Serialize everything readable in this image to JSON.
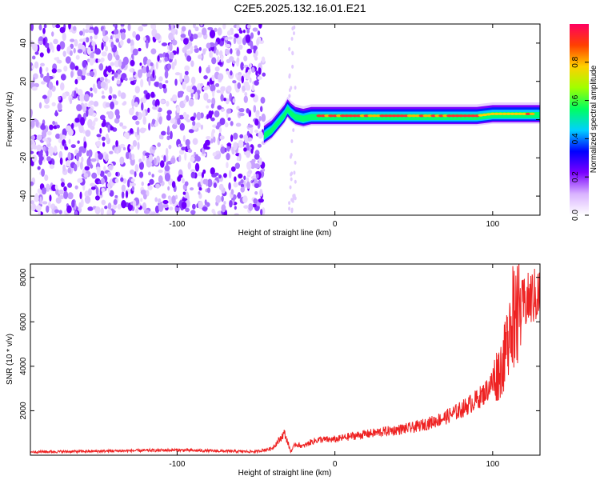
{
  "title": "C2E5.2025.132.16.01.E21",
  "chart_data": [
    {
      "type": "heatmap",
      "xlabel": "Height of straight line (km)",
      "ylabel": "Frequency (Hz)",
      "xlim": [
        -193,
        130
      ],
      "ylim": [
        -50,
        50
      ],
      "xticks": [
        -100,
        0,
        100
      ],
      "yticks": [
        -40,
        -20,
        0,
        20,
        40
      ],
      "colorbar": {
        "label": "Normalized spectral amplitude",
        "range": [
          0.0,
          1.0
        ],
        "ticks": [
          "0.0",
          "0.2",
          "0.4",
          "0.6",
          "0.8"
        ],
        "colors": [
          "#ffffff",
          "#d9b3ff",
          "#7a00ff",
          "#0000ff",
          "#00d0ff",
          "#00ff60",
          "#a0ff00",
          "#ffd000",
          "#ff4000",
          "#ff0060"
        ]
      },
      "noise_region": {
        "x": [
          -193,
          -45
        ],
        "y": [
          -50,
          50
        ]
      },
      "ridge": {
        "x": [
          -45,
          -40,
          -35,
          -32,
          -30,
          -28,
          -25,
          -20,
          -15,
          -10,
          -5,
          0,
          10,
          30,
          60,
          90,
          100,
          110,
          120,
          130
        ],
        "y": [
          -9,
          -6,
          -1,
          2,
          5,
          3,
          1,
          0,
          1,
          1,
          1,
          1,
          1,
          1,
          1,
          1,
          2,
          2,
          2,
          2
        ]
      }
    },
    {
      "type": "line",
      "xlabel": "Height of straight line (km)",
      "ylabel": "SNR (10 * v/v)",
      "xlim": [
        -193,
        130
      ],
      "ylim": [
        0,
        8600
      ],
      "xticks": [
        -100,
        0,
        100
      ],
      "yticks": [
        2000,
        4000,
        6000,
        8000
      ],
      "color": "#ee2222",
      "series": [
        {
          "x": [
            -193,
            -160,
            -130,
            -100,
            -70,
            -50,
            -40,
            -35,
            -32,
            -30,
            -28,
            -25,
            -20,
            -15,
            -10,
            0,
            10,
            20,
            30,
            40,
            50,
            60,
            70,
            80,
            90,
            95,
            100,
            105,
            108,
            110,
            112,
            114,
            116,
            120,
            125,
            130
          ],
          "y": [
            150,
            170,
            200,
            230,
            180,
            160,
            300,
            700,
            1000,
            600,
            150,
            500,
            400,
            600,
            700,
            700,
            850,
            950,
            1050,
            1150,
            1250,
            1450,
            1700,
            2050,
            2500,
            2800,
            3300,
            3900,
            4500,
            5500,
            6500,
            6000,
            6400,
            6800,
            7100,
            7200
          ]
        }
      ]
    }
  ]
}
